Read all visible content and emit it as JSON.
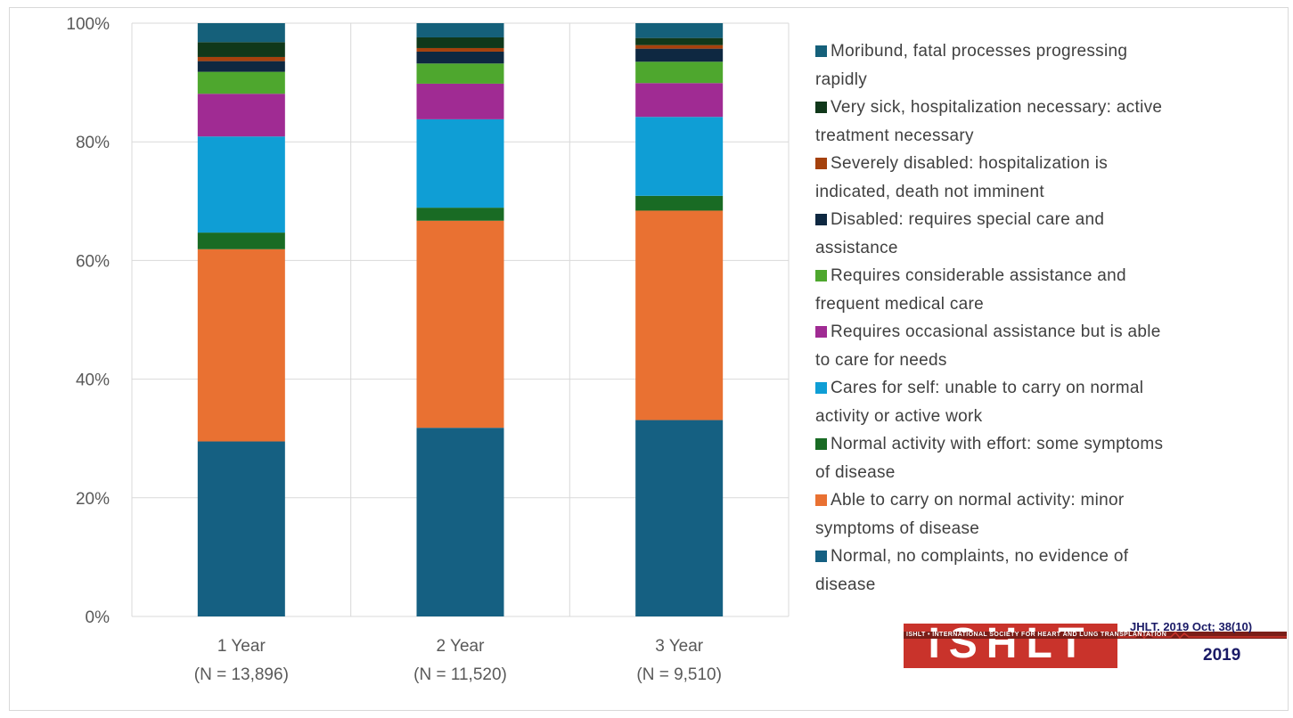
{
  "chart_data": {
    "type": "bar",
    "stacked": true,
    "percent": true,
    "categories": [
      "1 Year",
      "2 Year",
      "3 Year"
    ],
    "category_sublabels": [
      "(N = 13,896)",
      "(N = 11,520)",
      "(N = 9,510)"
    ],
    "ylim": [
      0,
      100
    ],
    "yticks": [
      "0%",
      "20%",
      "40%",
      "60%",
      "80%",
      "100%"
    ],
    "grid": true,
    "legend_position": "right",
    "series": [
      {
        "name": "Normal, no complaints, no evidence of disease",
        "color": "#156082",
        "values": [
          29.5,
          31.8,
          33.1
        ]
      },
      {
        "name": "Able to carry on normal activity: minor symptoms of disease",
        "color": "#e97132",
        "values": [
          32.4,
          34.9,
          35.3
        ]
      },
      {
        "name": "Normal activity with effort: some symptoms of disease",
        "color": "#196b24",
        "values": [
          2.8,
          2.2,
          2.5
        ]
      },
      {
        "name": "Cares for self: unable to carry on normal activity or active work",
        "color": "#0f9ed5",
        "values": [
          16.2,
          14.9,
          13.3
        ]
      },
      {
        "name": "Requires occasional assistance but is able to care for needs",
        "color": "#a02b93",
        "values": [
          7.2,
          6.0,
          5.7
        ]
      },
      {
        "name": "Requires considerable assistance and frequent medical care",
        "color": "#4ea72e",
        "values": [
          3.7,
          3.4,
          3.6
        ]
      },
      {
        "name": "Disabled: requires special care and assistance",
        "color": "#0e2841",
        "values": [
          1.8,
          2.0,
          2.2
        ]
      },
      {
        "name": "Severely disabled: hospitalization is indicated, death not imminent",
        "color": "#a5410d",
        "values": [
          0.7,
          0.6,
          0.6
        ]
      },
      {
        "name": "Very sick, hospitalization necessary: active treatment necessary",
        "color": "#10381a",
        "values": [
          2.5,
          1.8,
          1.2
        ]
      },
      {
        "name": "Moribund, fatal processes progressing rapidly",
        "color": "#15607a",
        "values": [
          3.2,
          2.4,
          2.5
        ]
      }
    ]
  },
  "legend": [
    {
      "line1": "Moribund, fatal processes progressing",
      "line2": "rapidly",
      "color": "#15607a"
    },
    {
      "line1": "Very sick, hospitalization necessary: active",
      "line2": "treatment necessary",
      "color": "#10381a"
    },
    {
      "line1": "Severely disabled: hospitalization is",
      "line2": "indicated, death not imminent",
      "color": "#a5410d"
    },
    {
      "line1": "Disabled: requires special care and",
      "line2": "assistance",
      "color": "#0e2841"
    },
    {
      "line1": "Requires considerable assistance and",
      "line2": "frequent medical care",
      "color": "#4ea72e"
    },
    {
      "line1": "Requires occasional assistance but is able",
      "line2": "to care for needs",
      "color": "#a02b93"
    },
    {
      "line1": "Cares for self: unable to carry on normal",
      "line2": "activity or active work",
      "color": "#0f9ed5"
    },
    {
      "line1": "Normal activity with effort: some symptoms",
      "line2": "of disease",
      "color": "#196b24"
    },
    {
      "line1": "Able to carry on normal activity: minor",
      "line2": "symptoms of disease",
      "color": "#e97132"
    },
    {
      "line1": "Normal, no complaints, no evidence of",
      "line2": "disease",
      "color": "#156082"
    }
  ],
  "logo": {
    "wordmark": "ISHLT",
    "tagline": "ISHLT • INTERNATIONAL SOCIETY FOR HEART AND LUNG TRANSPLANTATION",
    "reference": "JHLT. 2019 Oct; 38(10)",
    "year": "2019"
  }
}
